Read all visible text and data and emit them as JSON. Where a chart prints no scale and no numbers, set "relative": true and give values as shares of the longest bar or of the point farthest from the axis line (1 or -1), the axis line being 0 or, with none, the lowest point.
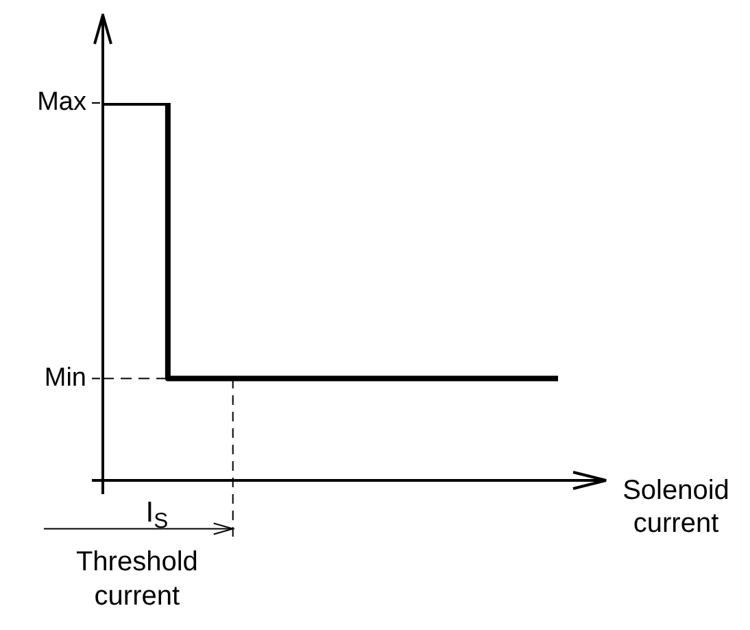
{
  "chart_data": {
    "type": "step",
    "relative": true,
    "xlabel": "Solenoid current",
    "color": "#000000",
    "categories": [
      null,
      null,
      null,
      null,
      null,
      null,
      null,
      null
    ],
    "values": [
      1,
      1,
      0.27,
      0.27,
      0.27,
      0.27,
      0.27,
      0.27
    ],
    "ref_lines": [
      {
        "axis": "y",
        "value": 0.27,
        "line_style": "dashed"
      }
    ],
    "annotations": [
      "Max",
      "Min",
      "I$_{S}$",
      "Threshold current"
    ]
  }
}
